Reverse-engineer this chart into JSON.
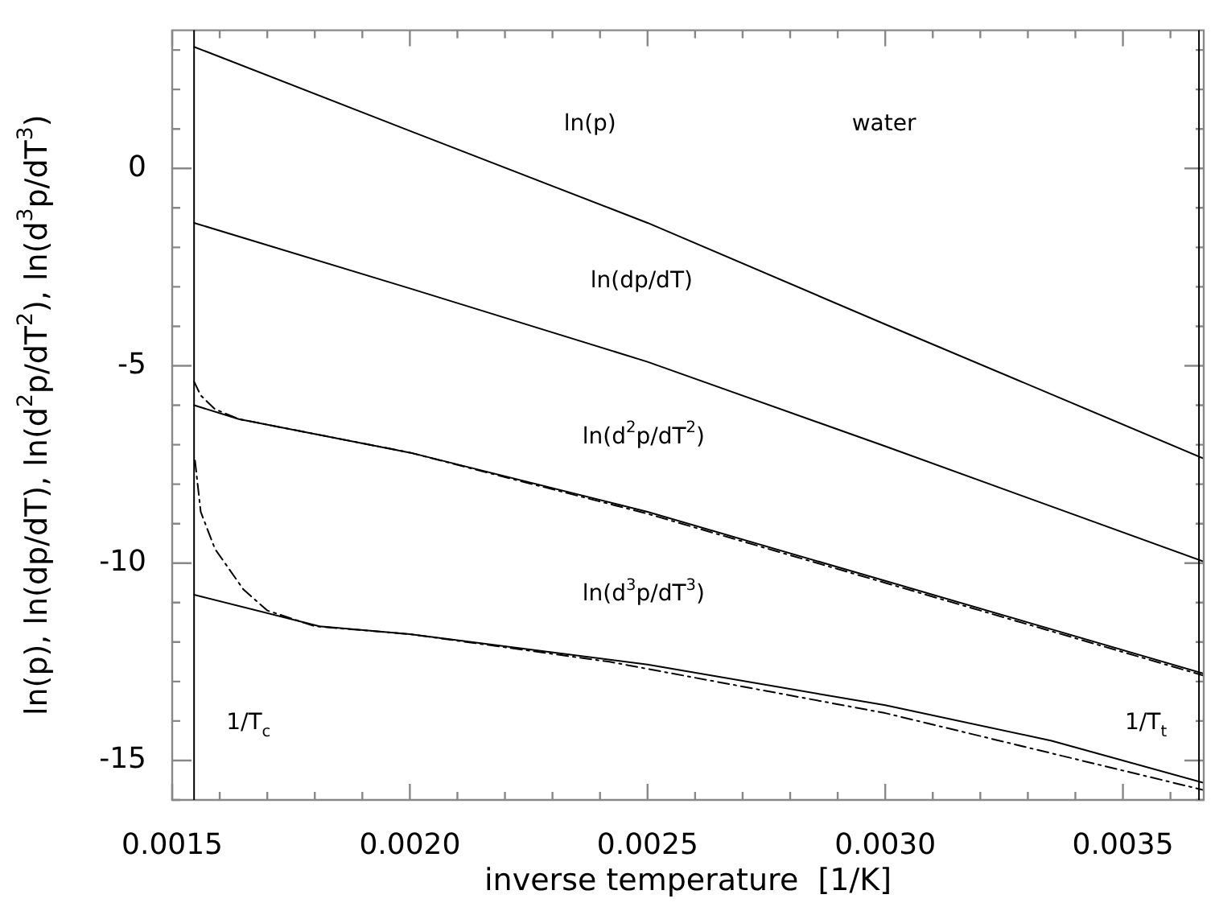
{
  "chart_data": {
    "type": "line",
    "xlabel": "inverse temperature  [1/K]",
    "ylabel": "ln(p), ln(dp/dT), ln(d$^{2}$p/dT$^{2}$), ln(d$^{3}$p/dT$^{3}$)",
    "xlim": [
      0.0015,
      0.00367
    ],
    "ylim": [
      -16,
      3.5
    ],
    "xticks": [
      {
        "value": 0.0015,
        "label": "0.0015"
      },
      {
        "value": 0.0016,
        "label": null
      },
      {
        "value": 0.0017,
        "label": null
      },
      {
        "value": 0.0018,
        "label": null
      },
      {
        "value": 0.0019,
        "label": null
      },
      {
        "value": 0.002,
        "label": "0.0020"
      },
      {
        "value": 0.0021,
        "label": null
      },
      {
        "value": 0.0022,
        "label": null
      },
      {
        "value": 0.0023,
        "label": null
      },
      {
        "value": 0.0024,
        "label": null
      },
      {
        "value": 0.0025,
        "label": "0.0025"
      },
      {
        "value": 0.0026,
        "label": null
      },
      {
        "value": 0.0027,
        "label": null
      },
      {
        "value": 0.0028,
        "label": null
      },
      {
        "value": 0.0029,
        "label": null
      },
      {
        "value": 0.003,
        "label": "0.0030"
      },
      {
        "value": 0.0031,
        "label": null
      },
      {
        "value": 0.0032,
        "label": null
      },
      {
        "value": 0.0033,
        "label": null
      },
      {
        "value": 0.0034,
        "label": null
      },
      {
        "value": 0.0035,
        "label": "0.0035"
      },
      {
        "value": 0.0036,
        "label": null
      }
    ],
    "yticks": [
      {
        "value": -16,
        "label": null
      },
      -15,
      {
        "value": -14,
        "label": null
      },
      {
        "value": -13,
        "label": null
      },
      {
        "value": -12,
        "label": null
      },
      {
        "value": -11,
        "label": null
      },
      -10,
      {
        "value": -9,
        "label": null
      },
      {
        "value": -8,
        "label": null
      },
      {
        "value": -7,
        "label": null
      },
      {
        "value": -6,
        "label": null
      },
      -5,
      {
        "value": -4,
        "label": null
      },
      {
        "value": -3,
        "label": null
      },
      {
        "value": -2,
        "label": null
      },
      {
        "value": -1,
        "label": null
      },
      0,
      {
        "value": 1,
        "label": null
      },
      {
        "value": 2,
        "label": null
      },
      {
        "value": 3,
        "label": null
      }
    ],
    "grid": false,
    "legend": false,
    "marker": "none",
    "series": [
      {
        "color": "#000000",
        "line_style": "solid",
        "x": [
          0.001546,
          0.002,
          0.0025,
          0.003,
          0.00367
        ],
        "values": [
          3.08,
          0.95,
          -1.38,
          -3.95,
          -7.35
        ]
      },
      {
        "color": "#000000",
        "line_style": "solid",
        "x": [
          0.001546,
          0.002,
          0.0025,
          0.003,
          0.00367
        ],
        "values": [
          -1.38,
          -3.04,
          -4.9,
          -7.04,
          -9.96
        ]
      },
      {
        "color": "#000000",
        "line_style": "solid",
        "x": [
          0.001546,
          0.00164,
          0.002,
          0.0025,
          0.003,
          0.00367
        ],
        "values": [
          -6.0,
          -6.35,
          -7.2,
          -8.7,
          -10.45,
          -12.8
        ]
      },
      {
        "color": "#000000",
        "line_style": "dashed",
        "x": [
          0.001546,
          0.00156,
          0.00159,
          0.00164,
          0.002,
          0.0025,
          0.003,
          0.00367
        ],
        "values": [
          -5.4,
          -5.75,
          -6.1,
          -6.35,
          -7.2,
          -8.75,
          -10.5,
          -12.85
        ]
      },
      {
        "color": "#000000",
        "line_style": "solid",
        "x": [
          0.001546,
          0.00181,
          0.002,
          0.0025,
          0.003,
          0.00335,
          0.00367
        ],
        "values": [
          -10.8,
          -11.6,
          -11.8,
          -12.57,
          -13.6,
          -14.5,
          -15.57
        ]
      },
      {
        "color": "#000000",
        "line_style": "dashed",
        "x": [
          0.001548,
          0.00156,
          0.00159,
          0.00165,
          0.0017,
          0.0018,
          0.002,
          0.00242,
          0.003,
          0.00367
        ],
        "values": [
          -7.4,
          -8.7,
          -9.64,
          -10.67,
          -11.2,
          -11.6,
          -11.8,
          -12.5,
          -13.8,
          -15.75
        ]
      }
    ],
    "ref_lines": [
      {
        "axis": "x",
        "value": 0.001546,
        "label": "1/T$_{c}$",
        "color": "#000000"
      },
      {
        "axis": "x",
        "value": 0.00366,
        "label": "1/T$_{t}$",
        "color": "#000000"
      }
    ],
    "annotations": [
      "ln(p)",
      "ln(dp/dT)",
      "ln(d$^{2}$p/dT$^{2}$)",
      "ln(d$^{3}$p/dT$^{3}$)",
      "water"
    ]
  }
}
